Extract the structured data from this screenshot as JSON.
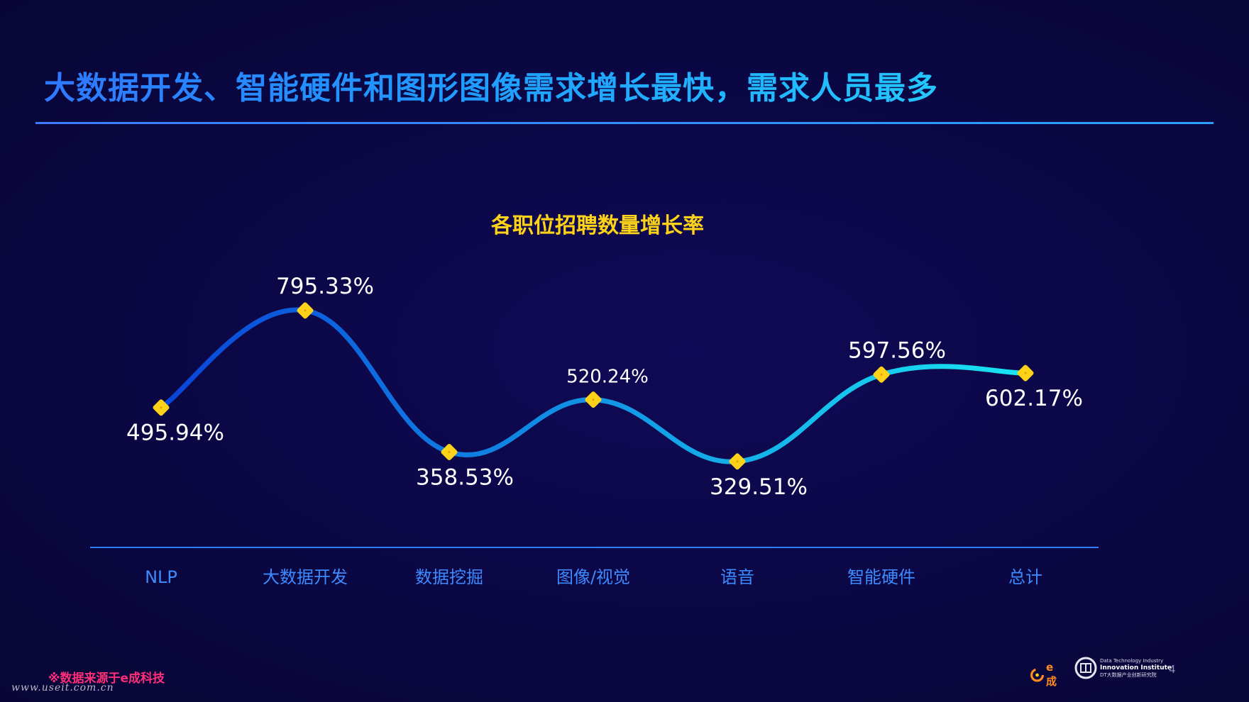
{
  "slide": {
    "title": "大数据开发、智能硬件和图形图像需求增长最快，需求人员最多",
    "source_note": "※数据来源于e成科技",
    "watermark": "www.useit.com.cn",
    "page_number": "4",
    "logos": {
      "echeng_text": "e成",
      "dt_line1": "Data Technology Industry",
      "dt_line2": "Innovation Institute",
      "dt_line3": "DT大数据产业创新研究院"
    }
  },
  "chart_data": {
    "type": "line",
    "title": "各职位招聘数量增长率",
    "categories": [
      "NLP",
      "大数据开发",
      "数据挖掘",
      "图像/视觉",
      "语音",
      "智能硬件",
      "总计"
    ],
    "values": [
      495.94,
      795.33,
      358.53,
      520.24,
      329.51,
      597.56,
      602.17
    ],
    "value_labels": [
      "495.94%",
      "795.33%",
      "358.53%",
      "520.24%",
      "329.51%",
      "597.56%",
      "602.17%"
    ],
    "unit": "%",
    "xlabel": "",
    "ylabel": "",
    "ylim": [
      200,
      900
    ],
    "smooth": true,
    "grid": false,
    "legend": "none",
    "colors": {
      "line_start": "#0a44d8",
      "line_end": "#19e6f2",
      "marker": "#ffd21a",
      "title": "#ffd21a",
      "value_label": "#ffffff",
      "category_label": "#3d8bff",
      "axis": "#2f7cff"
    }
  }
}
